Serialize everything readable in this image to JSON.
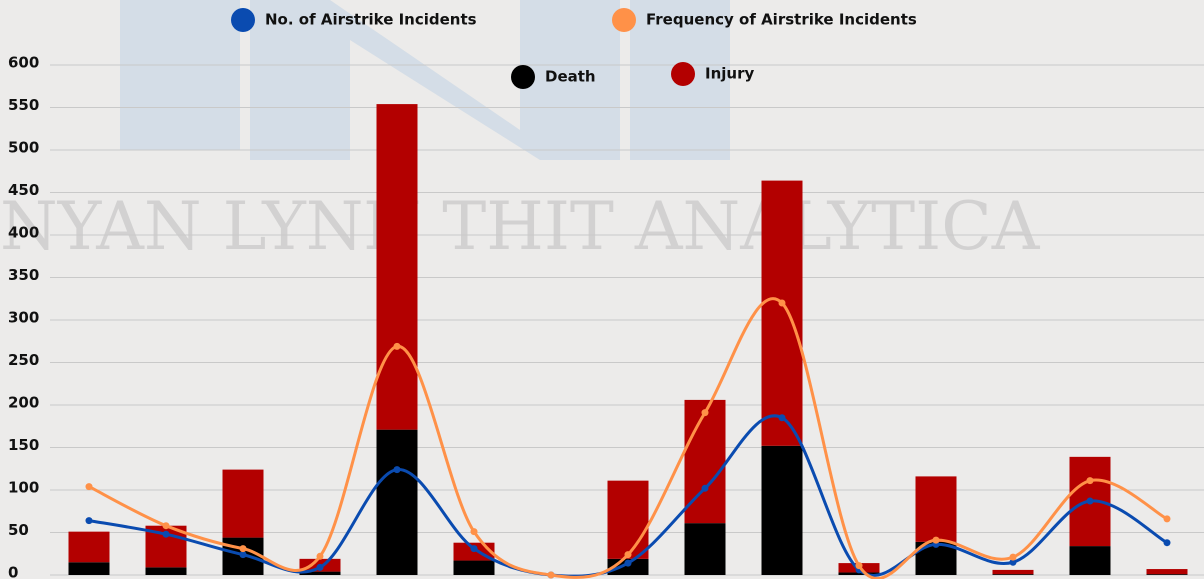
{
  "chart_data": {
    "type": "bar",
    "watermark": "NYAN LYNN THIT ANALYTICA",
    "categories": [
      null,
      null,
      null,
      null,
      null,
      null,
      null,
      null,
      null,
      null,
      null,
      null,
      null,
      null,
      null
    ],
    "series": [
      {
        "name": "Death",
        "type": "bar",
        "color": "#000000",
        "values": [
          15,
          9,
          44,
          4,
          171,
          17,
          0,
          19,
          61,
          152,
          3,
          39,
          1,
          34,
          1
        ]
      },
      {
        "name": "Injury",
        "type": "bar",
        "color": "#b30000",
        "values": [
          36,
          49,
          80,
          15,
          383,
          21,
          0,
          92,
          145,
          312,
          11,
          77,
          5,
          105,
          6
        ]
      },
      {
        "name": "No. of Airstrike Incidents",
        "type": "line",
        "color": "#0a4bb0",
        "values": [
          64,
          48,
          24,
          9,
          124,
          31,
          0,
          14,
          102,
          185,
          6,
          36,
          15,
          87,
          38
        ]
      },
      {
        "name": "Frequency of Airstrike Incidents",
        "type": "line",
        "color": "#ff9148",
        "values": [
          104,
          58,
          31,
          22,
          269,
          51,
          0,
          24,
          191,
          320,
          11,
          41,
          21,
          111,
          66
        ]
      }
    ],
    "ylim": [
      0,
      600
    ],
    "yticks": [
      0,
      50,
      100,
      150,
      200,
      250,
      300,
      350,
      400,
      450,
      500,
      550,
      600
    ],
    "grid": true
  }
}
